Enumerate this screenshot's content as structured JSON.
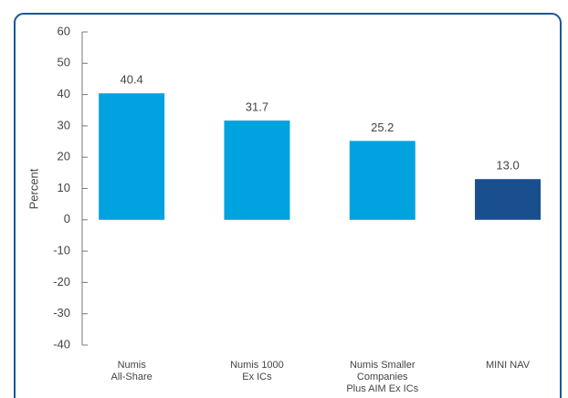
{
  "chart_data": {
    "type": "bar",
    "y_label": "Percent",
    "categories": [
      [
        "Numis",
        "All-Share"
      ],
      [
        "Numis 1000",
        "Ex ICs"
      ],
      [
        "Numis Smaller",
        "Companies",
        "Plus AIM Ex ICs"
      ],
      [
        "MINI NAV"
      ]
    ],
    "values": [
      40.4,
      31.7,
      25.2,
      13.0
    ],
    "value_labels": [
      "40.4",
      "31.7",
      "25.2",
      "13.0"
    ],
    "colors": [
      "#00a3e0",
      "#00a3e0",
      "#00a3e0",
      "#1a4f8f"
    ],
    "ylim": [
      -40,
      60
    ],
    "yticks": [
      -40,
      -30,
      -20,
      -10,
      0,
      10,
      20,
      30,
      40,
      50,
      60
    ],
    "grid": false
  }
}
